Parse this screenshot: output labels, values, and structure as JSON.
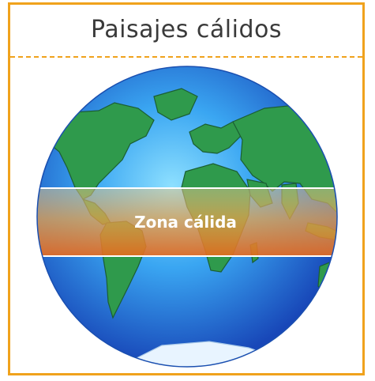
{
  "header": {
    "title": "Paisajes cálidos"
  },
  "globe": {
    "zone_label": "Zona cálida"
  },
  "colors": {
    "frame": "#f0a21c",
    "ocean_light": "#5ec7ff",
    "ocean_dark": "#1a58c8",
    "land": "#2f9a4c",
    "warm_band": "#e8731f",
    "title_text": "#3a3a3a"
  }
}
